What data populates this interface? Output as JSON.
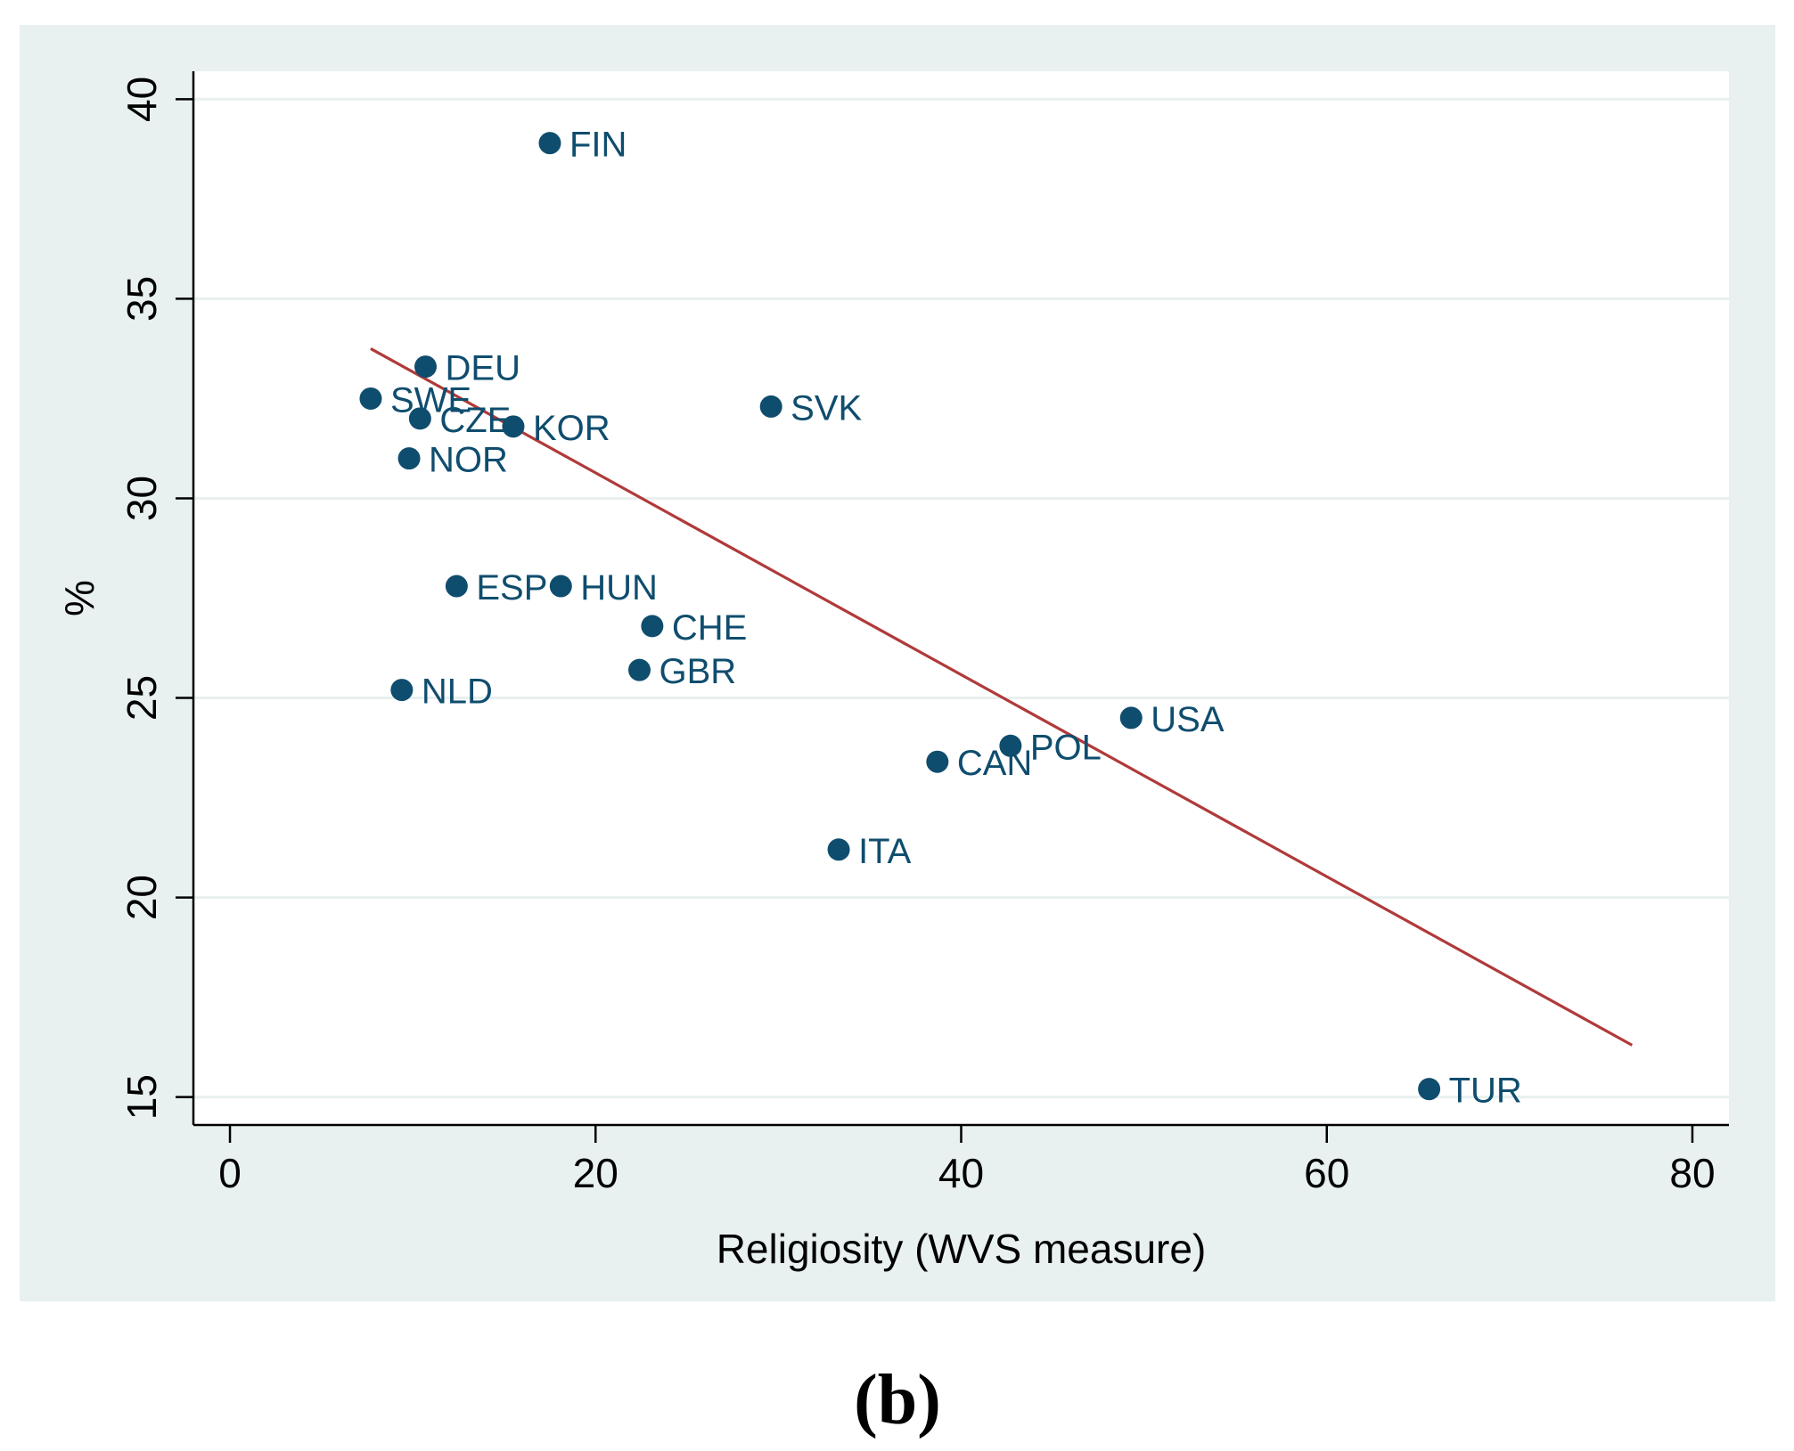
{
  "colors": {
    "background_panel": "#e8f0f0",
    "plot_area": "#ffffff",
    "gridline": "#e8f0f0",
    "axis": "#000000",
    "marker": "#0f4d6e",
    "label": "#0f4d6e",
    "fit_line": "#b03a3a"
  },
  "caption": "(b)",
  "chart_data": {
    "type": "scatter",
    "title": "",
    "xlabel": "Religiosity (WVS measure)",
    "ylabel": "%",
    "xlim": [
      -2,
      82
    ],
    "ylim": [
      14.3,
      40.7
    ],
    "grid": true,
    "x_ticks": [
      0,
      20,
      40,
      60,
      80
    ],
    "x_tick_labels": [
      "0",
      "20",
      "40",
      "60",
      "80"
    ],
    "y_ticks": [
      15,
      20,
      25,
      30,
      35,
      40
    ],
    "y_tick_labels": [
      "15",
      "20",
      "25",
      "30",
      "35",
      "40"
    ],
    "points": [
      {
        "label": "FIN",
        "x": 17.5,
        "y": 38.9
      },
      {
        "label": "DEU",
        "x": 10.7,
        "y": 33.3
      },
      {
        "label": "SWE",
        "x": 7.7,
        "y": 32.5
      },
      {
        "label": "CZE",
        "x": 10.4,
        "y": 32.0
      },
      {
        "label": "KOR",
        "x": 15.5,
        "y": 31.8
      },
      {
        "label": "SVK",
        "x": 29.6,
        "y": 32.3
      },
      {
        "label": "NOR",
        "x": 9.8,
        "y": 31.0
      },
      {
        "label": "ESP",
        "x": 12.4,
        "y": 27.8
      },
      {
        "label": "HUN",
        "x": 18.1,
        "y": 27.8
      },
      {
        "label": "CHE",
        "x": 23.1,
        "y": 26.8
      },
      {
        "label": "GBR",
        "x": 22.4,
        "y": 25.7
      },
      {
        "label": "NLD",
        "x": 9.4,
        "y": 25.2
      },
      {
        "label": "USA",
        "x": 49.3,
        "y": 24.5
      },
      {
        "label": "POL",
        "x": 42.7,
        "y": 23.8
      },
      {
        "label": "CAN",
        "x": 38.7,
        "y": 23.4
      },
      {
        "label": "ITA",
        "x": 33.3,
        "y": 21.2
      },
      {
        "label": "TUR",
        "x": 65.6,
        "y": 15.2
      }
    ],
    "fit_line": {
      "x": [
        7.7,
        76.7
      ],
      "y": [
        33.75,
        16.3
      ]
    }
  }
}
